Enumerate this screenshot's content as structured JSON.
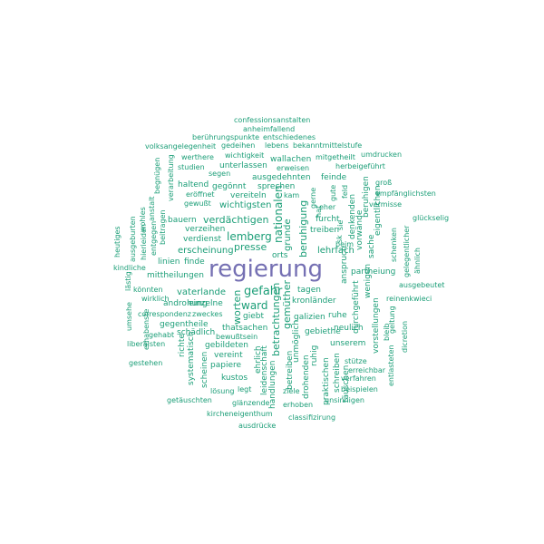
{
  "wordcloud": {
    "colors": {
      "main": "#1b9e77",
      "top": "#7570b3"
    },
    "top_word": "regierung",
    "words": [
      "confessionsanstalten",
      "anheimfallend",
      "berührungspunkte",
      "entschiedenes",
      "volksangelegenheit",
      "gedeihen",
      "lebens",
      "bekanntmittelstufe",
      "werthere",
      "wichtigkeit",
      "mitgetheilt",
      "umdrucken",
      "studien",
      "unterlassen",
      "wallachen",
      "herbeigeführt",
      "segen",
      "erweisen",
      "ausgedehnten",
      "feinde",
      "gegönnt",
      "sprechen",
      "haltend",
      "groß",
      "eröffnet",
      "vereiteln",
      "kam",
      "empfänglichsten",
      "gewußt",
      "wichtigsten",
      "grunde",
      "glückselig",
      "verdächtigen",
      "nationalen",
      "furcht",
      "eher",
      "verzeihen",
      "bauern",
      "beruhigung",
      "lemberg",
      "verdienst",
      "treiben",
      "presse",
      "erscheinung",
      "lehrfach",
      "linien",
      "finde",
      "regierung",
      "partheiung",
      "ausgebeutet",
      "mittheilungen",
      "gefahr",
      "vaterlande",
      "tagen",
      "kronländer",
      "reinenkwieci",
      "ward",
      "androhung",
      "einzelne",
      "correspondenz",
      "zweckes",
      "giebt",
      "galizien",
      "ruhe",
      "gegentheile",
      "thatsachen",
      "gebiethe",
      "schädlich",
      "bewußtsein",
      "neulich",
      "gebildeten",
      "unserem",
      "vereint",
      "papiere",
      "kustos",
      "lösung",
      "stütze",
      "erreichbar",
      "verfahren",
      "legt",
      "beispielen",
      "glänzende",
      "ziele",
      "unsinnigen",
      "kircheneigenthum",
      "erhoben",
      "classifizirung",
      "ausdrücke",
      "getäuschten",
      "gestehen",
      "liberalsten",
      "gehabt",
      "könnten",
      "wirklich",
      "lästig",
      "kindliche",
      "heutiges",
      "ausgeburten",
      "hierieiden",
      "wohles",
      "entgegen",
      "beitragen",
      "anstalt",
      "begnügen",
      "verarbeitung",
      "umsehe",
      "erhabenste",
      "richte",
      "systematisch",
      "scheinen",
      "ehrlich",
      "leidenschaft",
      "betrachtungen",
      "handlungen",
      "gemüther",
      "worten",
      "orts",
      "unmöglich",
      "betreiben",
      "drohenden",
      "praktischen",
      "ruhig",
      "schreiben",
      "täuschen",
      "anspruch",
      "durchgeführt",
      "vorstellungen",
      "bleib",
      "wenigen",
      "sache",
      "vorwände",
      "denkenden",
      "geltung",
      "entlasteten",
      "dicretion",
      "ähnlich",
      "gelegentlicher",
      "schenken",
      "vermisse",
      "eigentlichen",
      "beruhigen",
      "gute",
      "feld",
      "sie",
      "gerne",
      "beim",
      "hat",
      "sk"
    ]
  }
}
